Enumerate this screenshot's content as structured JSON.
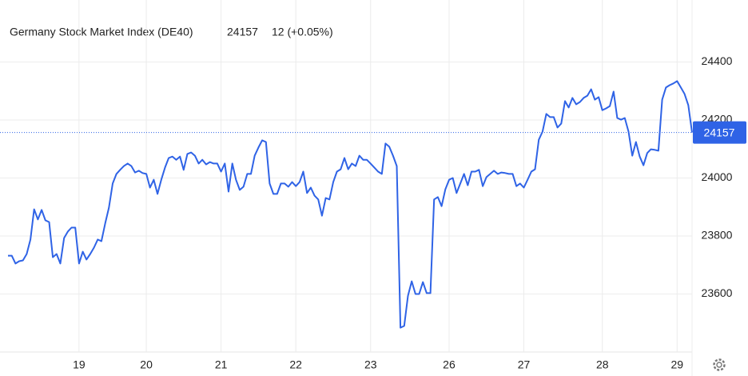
{
  "chart_data": {
    "type": "line",
    "title": "Germany Stock Market Index (DE40)",
    "last_price": 24157,
    "change": "12 (+0.05%)",
    "categories": [
      null,
      null,
      null,
      null,
      null,
      null,
      null,
      null,
      null,
      null,
      null,
      null,
      null,
      null,
      null,
      null,
      null,
      null,
      null,
      "19",
      null,
      null,
      null,
      null,
      null,
      null,
      null,
      null,
      null,
      null,
      null,
      null,
      null,
      null,
      null,
      null,
      null,
      "20",
      null,
      null,
      null,
      null,
      null,
      null,
      null,
      null,
      null,
      null,
      null,
      null,
      null,
      null,
      null,
      null,
      null,
      null,
      null,
      "21",
      null,
      null,
      null,
      null,
      null,
      null,
      null,
      null,
      null,
      null,
      null,
      null,
      null,
      null,
      null,
      null,
      null,
      null,
      null,
      "22",
      null,
      null,
      null,
      null,
      null,
      null,
      null,
      null,
      null,
      null,
      null,
      null,
      null,
      null,
      null,
      null,
      null,
      null,
      null,
      "23",
      null,
      null,
      null,
      null,
      null,
      null,
      null,
      null,
      null,
      null,
      null,
      null,
      null,
      null,
      null,
      null,
      null,
      null,
      null,
      null,
      "26",
      null,
      null,
      null,
      null,
      null,
      null,
      null,
      null,
      null,
      null,
      null,
      null,
      null,
      null,
      null,
      null,
      null,
      null,
      null,
      "27",
      null,
      null,
      null,
      null,
      null,
      null,
      null,
      null,
      null,
      null,
      null,
      null,
      null,
      null,
      null,
      null,
      null,
      null,
      null,
      null,
      "28",
      null,
      null,
      null,
      null,
      null,
      null,
      null,
      null,
      null,
      null,
      null,
      null,
      null,
      null,
      null,
      null,
      null,
      null,
      null,
      "29",
      null,
      null,
      null,
      null
    ],
    "series": [
      {
        "name": "DE40",
        "color": "#2f63e6",
        "values": [
          23732,
          23732,
          23705,
          23713,
          23716,
          23738,
          23788,
          23892,
          23857,
          23890,
          23854,
          23848,
          23727,
          23738,
          23705,
          23793,
          23815,
          23829,
          23829,
          23705,
          23746,
          23719,
          23738,
          23760,
          23788,
          23782,
          23843,
          23898,
          23981,
          24014,
          24028,
          24041,
          24050,
          24041,
          24019,
          24025,
          24017,
          24014,
          23967,
          23994,
          23945,
          23994,
          24036,
          24069,
          24074,
          24063,
          24074,
          24028,
          24083,
          24088,
          24077,
          24050,
          24063,
          24047,
          24055,
          24050,
          24050,
          24022,
          24050,
          23953,
          24050,
          23994,
          23959,
          23970,
          24014,
          24014,
          24077,
          24105,
          24130,
          24124,
          23981,
          23945,
          23945,
          23981,
          23981,
          23970,
          23986,
          23972,
          23986,
          24022,
          23948,
          23967,
          23939,
          23926,
          23870,
          23931,
          23926,
          23986,
          24022,
          24030,
          24069,
          24030,
          24050,
          24041,
          24077,
          24063,
          24063,
          24050,
          24036,
          24022,
          24014,
          24119,
          24108,
          24077,
          24041,
          23484,
          23490,
          23594,
          23644,
          23600,
          23600,
          23641,
          23603,
          23603,
          23926,
          23934,
          23903,
          23961,
          23994,
          24000,
          23948,
          23981,
          24014,
          23975,
          24022,
          24022,
          24028,
          23972,
          24003,
          24014,
          24025,
          24014,
          24019,
          24017,
          24014,
          24014,
          23972,
          23981,
          23967,
          23994,
          24022,
          24030,
          24132,
          24160,
          24221,
          24210,
          24210,
          24174,
          24188,
          24265,
          24243,
          24276,
          24254,
          24262,
          24276,
          24284,
          24306,
          24270,
          24279,
          24234,
          24240,
          24248,
          24298,
          24207,
          24201,
          24207,
          24160,
          24077,
          24124,
          24074,
          24044,
          24086,
          24099,
          24097,
          24094,
          24270,
          24312,
          24320,
          24326,
          24334,
          24312,
          24290,
          24251,
          24157
        ]
      }
    ],
    "ylim": [
      23400,
      24600
    ],
    "yticks": [
      23600,
      23800,
      24000,
      24200,
      24400
    ],
    "grid": true,
    "price_tag_color": "#2f63e6",
    "change_color": "#2ea043"
  }
}
